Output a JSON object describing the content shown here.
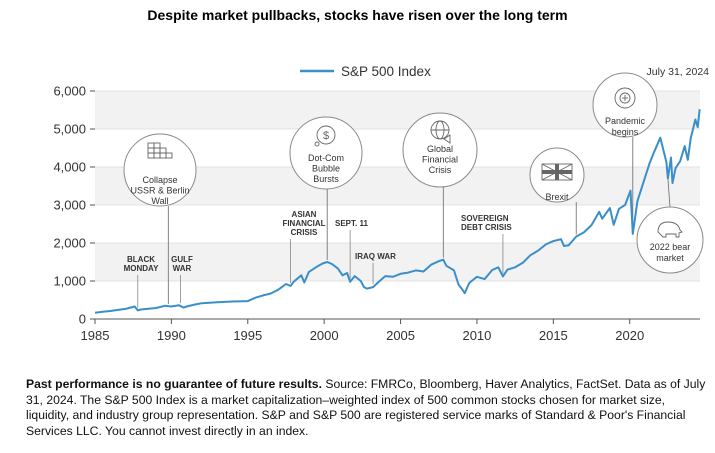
{
  "chart_data": {
    "type": "line",
    "title": "Despite market pullbacks, stocks have risen over the long term",
    "legend": "S&P 500 Index",
    "legend_position": "top-center",
    "end_label": "July 31, 2024",
    "xlim": [
      1985,
      2024.6
    ],
    "ylim": [
      0,
      6000
    ],
    "x_ticks": [
      1985,
      1990,
      1995,
      2000,
      2005,
      2010,
      2015,
      2020
    ],
    "x_tick_labels": [
      "1985",
      "1990",
      "1995",
      "2000",
      "2005",
      "2010",
      "2015",
      "2020"
    ],
    "y_ticks": [
      0,
      1000,
      2000,
      3000,
      4000,
      5000,
      6000
    ],
    "y_tick_labels": [
      "0",
      "1,000",
      "2,000",
      "3,000",
      "4,000",
      "5,000",
      "6,000"
    ],
    "series": [
      {
        "name": "S&P 500 Index",
        "color": "#3a8fc9",
        "points": [
          [
            1985.0,
            167
          ],
          [
            1985.5,
            190
          ],
          [
            1986.0,
            211
          ],
          [
            1986.5,
            240
          ],
          [
            1987.0,
            265
          ],
          [
            1987.6,
            330
          ],
          [
            1987.8,
            225
          ],
          [
            1988.0,
            250
          ],
          [
            1988.5,
            270
          ],
          [
            1989.0,
            290
          ],
          [
            1989.6,
            350
          ],
          [
            1990.0,
            330
          ],
          [
            1990.5,
            360
          ],
          [
            1990.8,
            300
          ],
          [
            1991.0,
            330
          ],
          [
            1991.5,
            380
          ],
          [
            1992.0,
            415
          ],
          [
            1993.0,
            440
          ],
          [
            1994.0,
            460
          ],
          [
            1995.0,
            470
          ],
          [
            1995.5,
            560
          ],
          [
            1996.0,
            620
          ],
          [
            1996.5,
            670
          ],
          [
            1997.0,
            770
          ],
          [
            1997.5,
            920
          ],
          [
            1997.8,
            870
          ],
          [
            1998.0,
            980
          ],
          [
            1998.5,
            1150
          ],
          [
            1998.7,
            960
          ],
          [
            1999.0,
            1240
          ],
          [
            1999.5,
            1370
          ],
          [
            1999.9,
            1460
          ],
          [
            2000.2,
            1500
          ],
          [
            2000.5,
            1450
          ],
          [
            2000.9,
            1330
          ],
          [
            2001.2,
            1150
          ],
          [
            2001.5,
            1210
          ],
          [
            2001.7,
            980
          ],
          [
            2002.0,
            1130
          ],
          [
            2002.4,
            1000
          ],
          [
            2002.6,
            840
          ],
          [
            2002.8,
            800
          ],
          [
            2003.2,
            840
          ],
          [
            2003.6,
            990
          ],
          [
            2004.0,
            1130
          ],
          [
            2004.5,
            1110
          ],
          [
            2005.0,
            1190
          ],
          [
            2005.5,
            1220
          ],
          [
            2006.0,
            1280
          ],
          [
            2006.5,
            1250
          ],
          [
            2007.0,
            1430
          ],
          [
            2007.5,
            1520
          ],
          [
            2007.8,
            1560
          ],
          [
            2008.0,
            1400
          ],
          [
            2008.5,
            1280
          ],
          [
            2008.8,
            900
          ],
          [
            2009.0,
            800
          ],
          [
            2009.2,
            680
          ],
          [
            2009.5,
            950
          ],
          [
            2010.0,
            1110
          ],
          [
            2010.5,
            1050
          ],
          [
            2011.0,
            1290
          ],
          [
            2011.4,
            1360
          ],
          [
            2011.7,
            1120
          ],
          [
            2012.0,
            1300
          ],
          [
            2012.5,
            1360
          ],
          [
            2013.0,
            1480
          ],
          [
            2013.5,
            1680
          ],
          [
            2014.0,
            1800
          ],
          [
            2014.5,
            1960
          ],
          [
            2015.0,
            2050
          ],
          [
            2015.5,
            2100
          ],
          [
            2015.7,
            1920
          ],
          [
            2016.0,
            1940
          ],
          [
            2016.5,
            2170
          ],
          [
            2017.0,
            2280
          ],
          [
            2017.5,
            2470
          ],
          [
            2018.0,
            2820
          ],
          [
            2018.2,
            2640
          ],
          [
            2018.7,
            2920
          ],
          [
            2018.95,
            2480
          ],
          [
            2019.3,
            2900
          ],
          [
            2019.7,
            3000
          ],
          [
            2020.05,
            3380
          ],
          [
            2020.2,
            2240
          ],
          [
            2020.5,
            3100
          ],
          [
            2020.9,
            3600
          ],
          [
            2021.3,
            4100
          ],
          [
            2021.6,
            4400
          ],
          [
            2022.0,
            4770
          ],
          [
            2022.4,
            4130
          ],
          [
            2022.5,
            3700
          ],
          [
            2022.7,
            4250
          ],
          [
            2022.8,
            3580
          ],
          [
            2023.0,
            3970
          ],
          [
            2023.3,
            4150
          ],
          [
            2023.6,
            4550
          ],
          [
            2023.8,
            4190
          ],
          [
            2024.0,
            4770
          ],
          [
            2024.3,
            5250
          ],
          [
            2024.45,
            5050
          ],
          [
            2024.58,
            5520
          ]
        ]
      }
    ],
    "annotations": [
      {
        "text": [
          "BLACK",
          "MONDAY"
        ],
        "year": 1987.8
      },
      {
        "text": [
          "GULF",
          "WAR"
        ],
        "year": 1990.6
      },
      {
        "text": [
          "ASIAN",
          "FINANCIAL",
          "CRISIS"
        ],
        "year": 1997.8
      },
      {
        "text": [
          "SEPT. 11"
        ],
        "year": 2001.7
      },
      {
        "text": [
          "IRAQ WAR"
        ],
        "year": 2003.2
      },
      {
        "text": [
          "SOVEREIGN",
          "DEBT CRISIS"
        ],
        "year": 2011.7
      }
    ],
    "events": [
      {
        "text": [
          "Collapse",
          "USSR & Berlin",
          "Wall"
        ],
        "year": 1989.8,
        "icon": "wall-icon"
      },
      {
        "text": [
          "Dot-Com",
          "Bubble",
          "Bursts"
        ],
        "year": 2000.2,
        "icon": "dollar-bubble-icon"
      },
      {
        "text": [
          "Global",
          "Financial",
          "Crisis"
        ],
        "year": 2007.8,
        "icon": "globe-icon"
      },
      {
        "text": [
          "Brexit"
        ],
        "year": 2016.5,
        "icon": "union-flag-icon"
      },
      {
        "text": [
          "Pandemic",
          "begins"
        ],
        "year": 2020.2,
        "icon": "virus-icon"
      },
      {
        "text": [
          "2022 bear",
          "market"
        ],
        "year": 2022.5,
        "icon": "bear-icon"
      }
    ]
  },
  "footnote": {
    "bold": "Past performance is no guarantee of future results.",
    "text": " Source: FMRCo, Bloomberg, Haver Analytics, FactSet. Data as of July 31, 2024. The S&P 500 Index is a market capitalization–weighted index of 500 common stocks chosen for market size, liquidity, and industry group representation. S&P and S&P 500 are registered service marks of Standard & Poor's Financial Services LLC. You cannot invest directly in an index."
  }
}
